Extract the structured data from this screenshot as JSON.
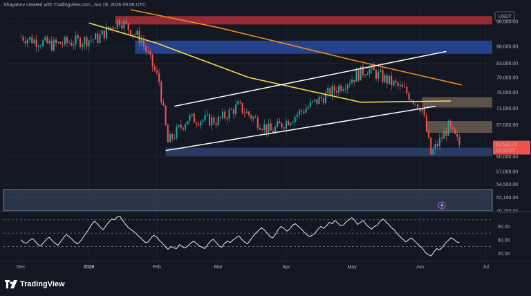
{
  "header": {
    "caption": "Shayannv created with TradingView.com, Jun 19, 2026 09:06 UTC"
  },
  "currency_badge": "USDT",
  "footer": {
    "brand": "TradingView",
    "logo_icon": "tradingview-logo-icon"
  },
  "colors": {
    "background": "#131722",
    "up_candle": "#26a69a",
    "down_candle": "#ef5350",
    "ma_yellow": "#f5d94a",
    "ma_orange": "#f08a24",
    "channel": "#ffffff",
    "support_zone": "#3c5a99",
    "resistance_zone_blue": "#2b50b0",
    "resistance_zone_red": "#c2333b",
    "fvg_zone": "#b59c7a",
    "rsi_line": "#e8ecf5",
    "price_badge": "#ef5350"
  },
  "chart_data": [
    {
      "type": "candlestick",
      "title": "",
      "x_axis_labels": [
        "Dec",
        "2026",
        "Feb",
        "Mar",
        "Apr",
        "May",
        "Jun",
        "Jul"
      ],
      "y_axis_labels": [
        "96,000.00",
        "88,000.00",
        "83,000.00",
        "79,000.00",
        "75,000.00",
        "71,000.00",
        "67,000.00",
        "62,522.25",
        "60,000.00",
        "57,000.00",
        "54,500.00",
        "52,100.00",
        "49,700.00"
      ],
      "y_scale": "log",
      "y_range": [
        49700,
        100000
      ],
      "current_price": 62522.25,
      "current_price_label": "62,522.25",
      "countdown_label": "14:53:27",
      "price_path_key_points": [
        {
          "date": "2025-12-01",
          "price": 91000
        },
        {
          "date": "2025-12-15",
          "price": 88500
        },
        {
          "date": "2026-01-05",
          "price": 90500
        },
        {
          "date": "2026-01-15",
          "price": 96500
        },
        {
          "date": "2026-01-25",
          "price": 90000
        },
        {
          "date": "2026-02-02",
          "price": 78000
        },
        {
          "date": "2026-02-06",
          "price": 63000
        },
        {
          "date": "2026-02-15",
          "price": 68500
        },
        {
          "date": "2026-03-01",
          "price": 68000
        },
        {
          "date": "2026-03-10",
          "price": 71500
        },
        {
          "date": "2026-03-25",
          "price": 65500
        },
        {
          "date": "2026-04-10",
          "price": 71000
        },
        {
          "date": "2026-04-25",
          "price": 76500
        },
        {
          "date": "2026-05-08",
          "price": 81500
        },
        {
          "date": "2026-05-25",
          "price": 75500
        },
        {
          "date": "2026-06-02",
          "price": 71000
        },
        {
          "date": "2026-06-06",
          "price": 60500
        },
        {
          "date": "2026-06-14",
          "price": 66500
        },
        {
          "date": "2026-06-19",
          "price": 62522.25
        }
      ],
      "moving_averages": [
        {
          "color": "#f5d94a",
          "points": [
            {
              "date": "2026-01-01",
              "price": 95500
            },
            {
              "date": "2026-02-01",
              "price": 89000
            },
            {
              "date": "2026-03-15",
              "price": 79000
            },
            {
              "date": "2026-05-05",
              "price": 72500
            },
            {
              "date": "2026-06-15",
              "price": 72800
            }
          ]
        },
        {
          "color": "#f08a24",
          "points": [
            {
              "date": "2026-01-20",
              "price": 100000
            },
            {
              "date": "2026-03-01",
              "price": 94000
            },
            {
              "date": "2026-05-01",
              "price": 84000
            },
            {
              "date": "2026-06-20",
              "price": 77000
            }
          ]
        }
      ],
      "channel": {
        "upper": [
          {
            "date": "2026-02-09",
            "price": 71500
          },
          {
            "date": "2026-06-13",
            "price": 86500
          }
        ],
        "lower": [
          {
            "date": "2026-02-05",
            "price": 61300
          },
          {
            "date": "2026-06-08",
            "price": 71500
          }
        ]
      },
      "zones": [
        {
          "name": "resistance-red",
          "from": 95000,
          "to": 97800,
          "color": "#c2333b"
        },
        {
          "name": "resistance-blue",
          "from": 85800,
          "to": 89800,
          "color": "#2b50b0"
        },
        {
          "name": "fvg-upper",
          "from": 71200,
          "to": 73800,
          "color": "#b59c7a"
        },
        {
          "name": "fvg-lower",
          "from": 65200,
          "to": 67900,
          "color": "#b59c7a"
        },
        {
          "name": "support-blue",
          "from": 60100,
          "to": 61900,
          "color": "#3c5a99"
        },
        {
          "name": "support-wide",
          "from": 49700,
          "to": 53500,
          "color": "#4a5a7a"
        }
      ]
    },
    {
      "type": "line",
      "title": "",
      "y_axis_labels": [
        "60.00",
        "40.00",
        "20.00"
      ],
      "y_range": [
        10,
        80
      ],
      "levels": [
        70,
        50,
        30
      ],
      "series": [
        {
          "values": [
            40,
            36,
            35,
            39,
            42,
            38,
            33,
            31,
            36,
            41,
            44,
            39,
            35,
            32,
            37,
            43,
            48,
            45,
            41,
            37,
            34,
            38,
            44,
            50,
            56,
            63,
            68,
            64,
            59,
            55,
            61,
            66,
            71,
            70,
            74,
            75,
            69,
            63,
            58,
            55,
            52,
            48,
            44,
            40,
            36,
            37,
            43,
            47,
            44,
            39,
            35,
            30,
            26,
            30,
            28,
            27,
            33,
            30,
            28,
            31,
            35,
            38,
            35,
            31,
            29,
            27,
            33,
            38,
            41,
            36,
            31,
            29,
            35,
            38,
            36,
            40,
            43,
            46,
            41,
            37,
            34,
            39,
            45,
            50,
            54,
            58,
            55,
            50,
            45,
            43,
            48,
            56,
            60,
            57,
            53,
            56,
            62,
            64,
            60,
            57,
            52,
            48,
            45,
            47,
            50,
            56,
            60,
            57,
            61,
            66,
            64,
            69,
            65,
            61,
            62,
            67,
            70,
            73,
            69,
            63,
            66,
            69,
            63,
            59,
            56,
            60,
            62,
            68,
            71,
            67,
            63,
            58,
            55,
            49,
            45,
            41,
            37,
            40,
            43,
            39,
            35,
            31,
            27,
            21,
            18,
            16,
            22,
            27,
            25,
            29,
            35,
            39,
            43,
            41,
            37,
            36
          ]
        }
      ]
    }
  ]
}
